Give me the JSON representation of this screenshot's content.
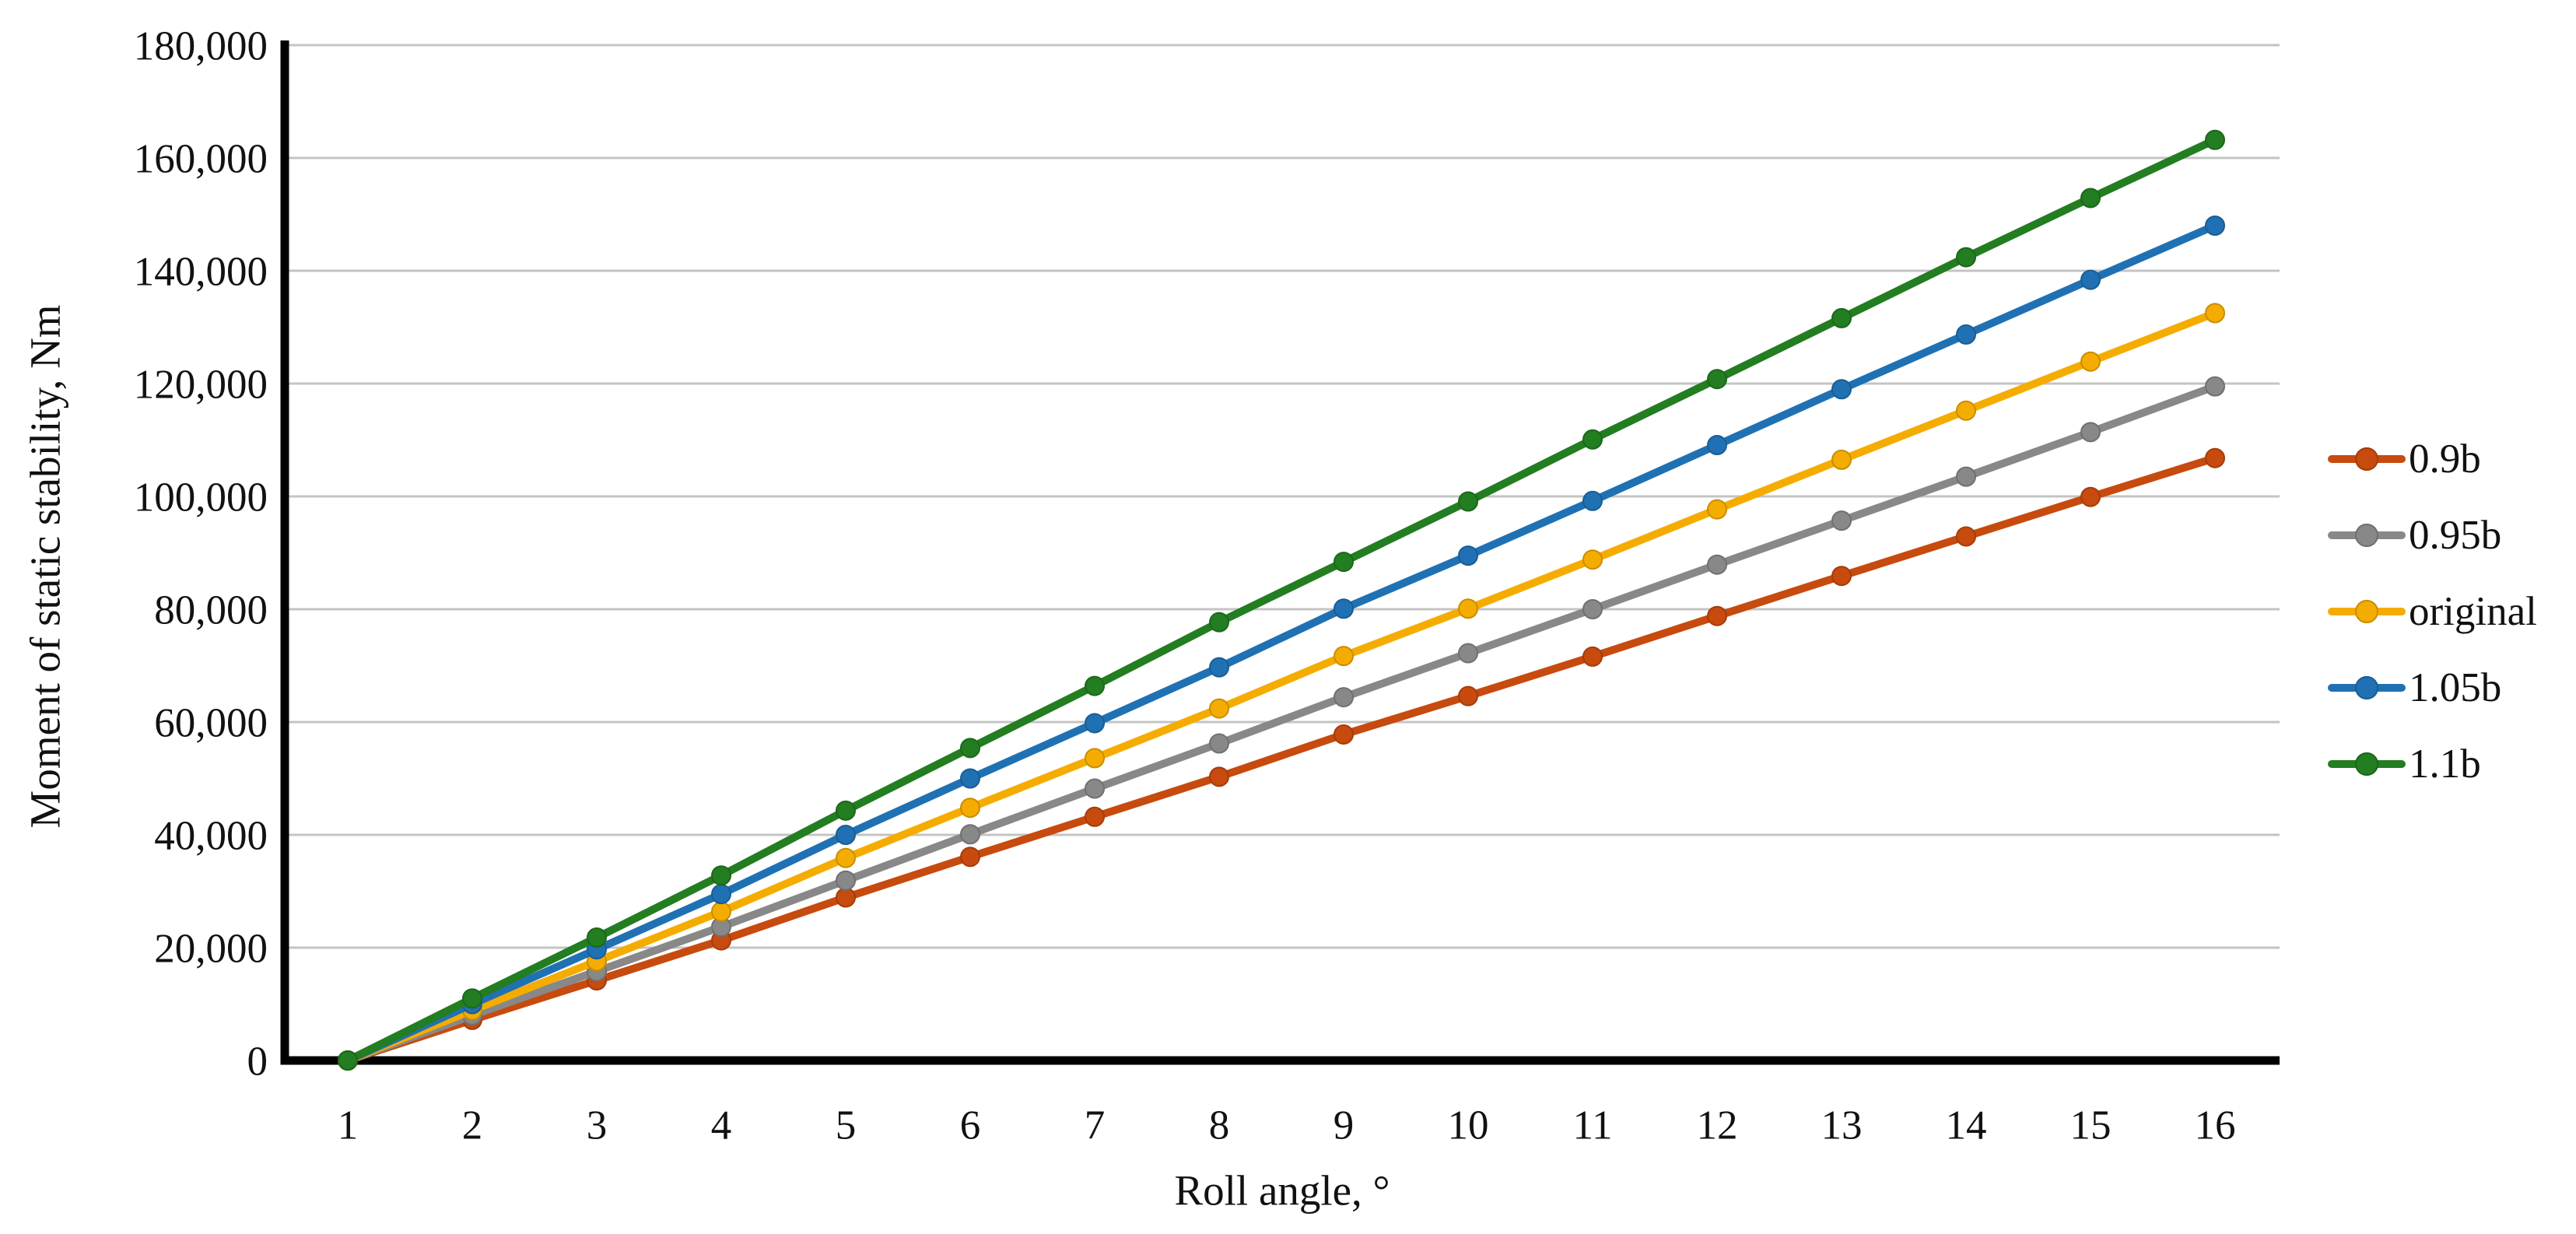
{
  "figure": {
    "background": "#ffffff",
    "text_color": "#111111",
    "axis_color": "#000000",
    "gridline_color": "#c4c4c4"
  },
  "chart_data": {
    "type": "line",
    "title": "",
    "xlabel": "Roll angle, °",
    "ylabel": "Moment of static stability, Nm",
    "x": [
      1,
      2,
      3,
      4,
      5,
      6,
      7,
      8,
      9,
      10,
      11,
      12,
      13,
      14,
      15,
      16
    ],
    "xlim": [
      1,
      16
    ],
    "ylim": [
      0,
      180000
    ],
    "yticks": [
      0,
      20000,
      40000,
      60000,
      80000,
      100000,
      120000,
      140000,
      160000,
      180000
    ],
    "ytick_format": "thousands-comma",
    "grid": "horizontal",
    "legend_position": "right",
    "marker": "circle",
    "series": [
      {
        "name": "0.9b",
        "color": "#C74A0E",
        "values": [
          0,
          7200,
          14200,
          21300,
          28900,
          36100,
          43200,
          50300,
          57800,
          64600,
          71600,
          78800,
          85900,
          92900,
          99900,
          106800
        ]
      },
      {
        "name": "0.95b",
        "color": "#888888",
        "values": [
          0,
          8000,
          15800,
          23700,
          31900,
          40100,
          48200,
          56200,
          64400,
          72200,
          80000,
          87900,
          95700,
          103500,
          111400,
          119500
        ]
      },
      {
        "name": "original",
        "color": "#F5AC00",
        "values": [
          0,
          8900,
          17600,
          26400,
          35900,
          44800,
          53600,
          62400,
          71700,
          80100,
          88800,
          97700,
          106500,
          115200,
          123900,
          132500
        ]
      },
      {
        "name": "1.05b",
        "color": "#2071B3",
        "values": [
          0,
          10000,
          19700,
          29500,
          40000,
          50000,
          59800,
          69700,
          80100,
          89500,
          99200,
          109100,
          119000,
          128700,
          138400,
          148000
        ]
      },
      {
        "name": "1.1b",
        "color": "#237D21",
        "values": [
          0,
          11000,
          21800,
          32800,
          44300,
          55400,
          66400,
          77700,
          88400,
          99100,
          110100,
          120800,
          131600,
          142400,
          152900,
          163200
        ]
      }
    ]
  }
}
